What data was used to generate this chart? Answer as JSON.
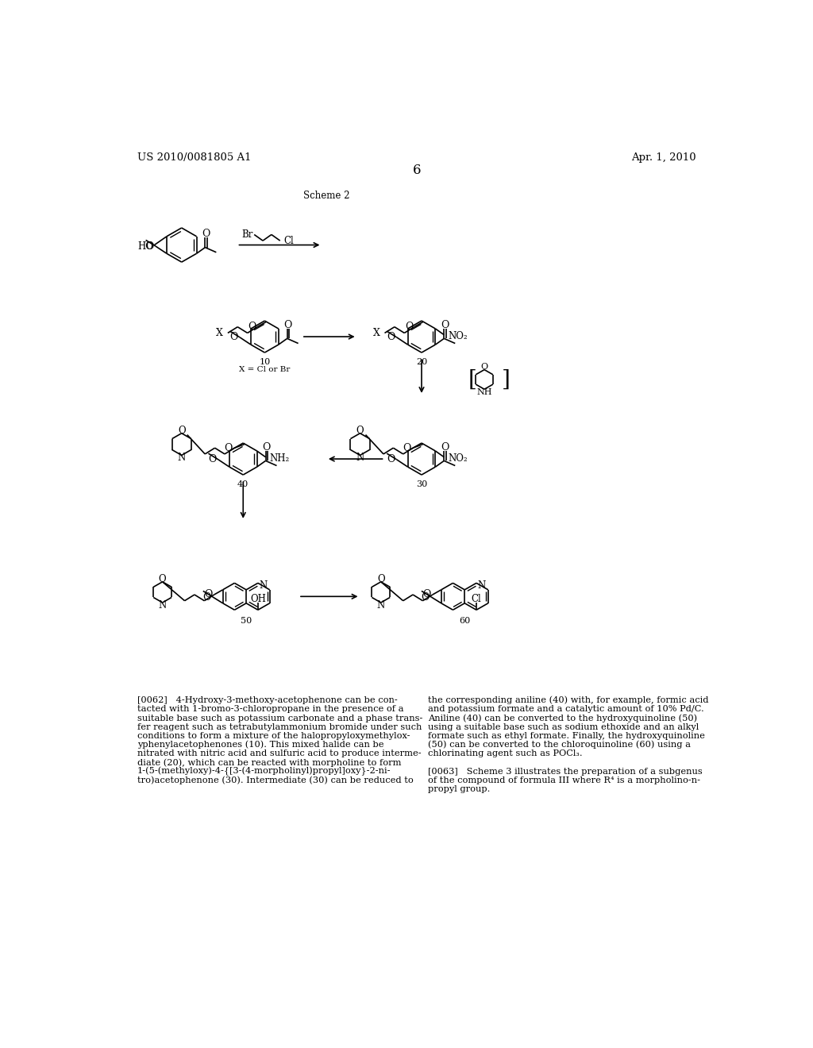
{
  "title_left": "US 2010/0081805 A1",
  "title_right": "Apr. 1, 2010",
  "page_number": "6",
  "scheme_label": "Scheme 2",
  "bg_color": "#ffffff",
  "para1_left": [
    "[0062]   4-Hydroxy-3-methoxy-acetophenone can be con-",
    "tacted with 1-bromo-3-chloropropane in the presence of a",
    "suitable base such as potassium carbonate and a phase trans-",
    "fer reagent such as tetrabutylammonium bromide under such",
    "conditions to form a mixture of the halopropyloxymethylox-",
    "yphenylacetophenones (10). This mixed halide can be",
    "nitrated with nitric acid and sulfuric acid to produce interme-",
    "diate (20), which can be reacted with morpholine to form",
    "1-(5-(methyloxy)-4-{[3-(4-morpholinyl)propyl]oxy}-2-ni-",
    "tro)acetophenone (30). Intermediate (30) can be reduced to"
  ],
  "para1_right": [
    "the corresponding aniline (40) with, for example, formic acid",
    "and potassium formate and a catalytic amount of 10% Pd/C.",
    "Aniline (40) can be converted to the hydroxyquinoline (50)",
    "using a suitable base such as sodium ethoxide and an alkyl",
    "formate such as ethyl formate. Finally, the hydroxyquinoline",
    "(50) can be converted to the chloroquinoline (60) using a",
    "chlorinating agent such as POCl₃.",
    "",
    "[0063]   Scheme 3 illustrates the preparation of a subgenus",
    "of the compound of formula III where R⁴ is a morpholino-n-",
    "propyl group."
  ]
}
